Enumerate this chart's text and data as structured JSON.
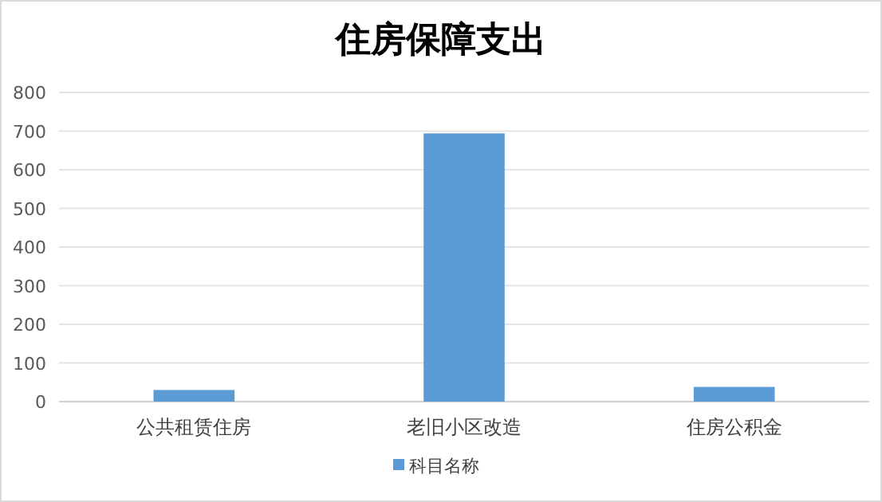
{
  "chart_data": {
    "type": "bar",
    "title": "住房保障支出",
    "categories": [
      "公共租赁住房",
      "老旧小区改造",
      "住房公积金"
    ],
    "series": [
      {
        "name": "科目名称",
        "color": "#5b9bd5",
        "values": [
          30,
          694,
          38
        ]
      }
    ],
    "ylim": [
      0,
      800
    ],
    "yticks": [
      0,
      100,
      200,
      300,
      400,
      500,
      600,
      700,
      800
    ],
    "grid": "y",
    "legend": "bottom"
  }
}
